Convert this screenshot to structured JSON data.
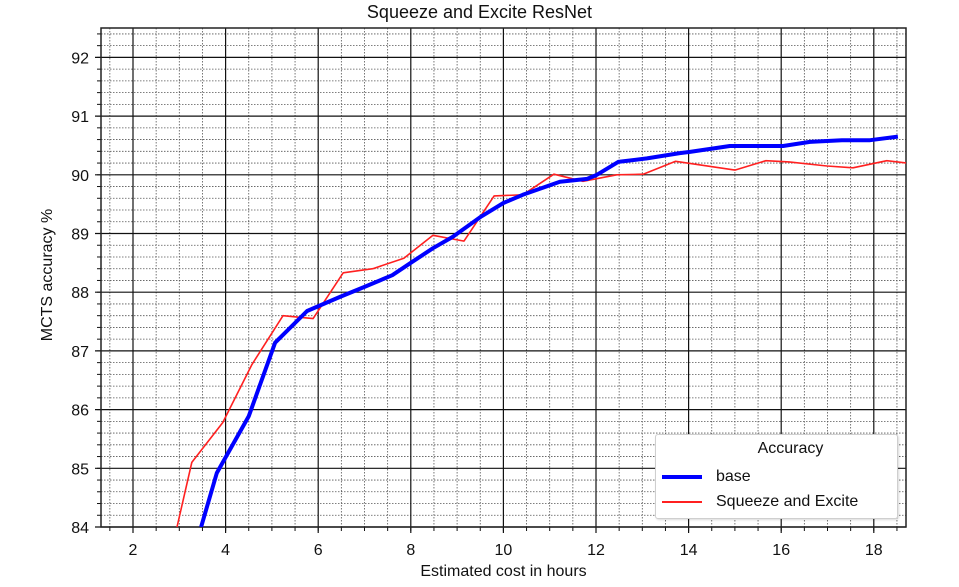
{
  "chart_data": {
    "type": "line",
    "title": "Squeeze and Excite ResNet",
    "xlabel": "Estimated cost in hours",
    "ylabel": "MCTS accuracy %",
    "xlim": [
      1.35,
      18.75
    ],
    "ylim": [
      84,
      92.5
    ],
    "xticks": [
      2,
      4,
      6,
      8,
      10,
      12,
      14,
      16,
      18
    ],
    "yticks": [
      84,
      85,
      86,
      87,
      88,
      89,
      90,
      91,
      92
    ],
    "grid": true,
    "legend": {
      "title": "Accuracy",
      "position": "lower right"
    },
    "series": [
      {
        "name": "base",
        "color": "#0000ff",
        "width": 4,
        "x": [
          3.47,
          3.81,
          4.5,
          5.07,
          5.76,
          6.47,
          7.0,
          7.6,
          8.0,
          8.48,
          8.9,
          9.5,
          10.0,
          10.42,
          11.22,
          11.81,
          12.02,
          12.48,
          13.1,
          13.81,
          14.03,
          14.89,
          16.04,
          16.62,
          17.31,
          17.92,
          18.52
        ],
        "y": [
          84.0,
          84.92,
          85.89,
          87.14,
          87.68,
          87.92,
          88.09,
          88.29,
          88.5,
          88.75,
          88.94,
          89.28,
          89.52,
          89.66,
          89.88,
          89.93,
          90.0,
          90.22,
          90.28,
          90.37,
          90.39,
          90.49,
          90.49,
          90.56,
          90.59,
          90.59,
          90.65
        ]
      },
      {
        "name": "Squeeze and Excite",
        "color": "#ff2020",
        "width": 1.6,
        "x": [
          2.95,
          3.27,
          3.94,
          4.57,
          5.24,
          5.89,
          6.54,
          7.18,
          7.85,
          8.48,
          9.15,
          9.8,
          10.42,
          11.09,
          11.72,
          12.45,
          13.02,
          13.72,
          15.0,
          15.67,
          16.17,
          16.99,
          17.55,
          18.28,
          18.72
        ],
        "y": [
          84.0,
          85.1,
          85.78,
          86.77,
          87.6,
          87.55,
          88.33,
          88.4,
          88.58,
          88.97,
          88.87,
          89.64,
          89.66,
          90.01,
          89.89,
          90.0,
          90.01,
          90.23,
          90.08,
          90.24,
          90.22,
          90.15,
          90.12,
          90.24,
          90.2
        ]
      }
    ]
  },
  "labels": {
    "title": "Squeeze and Excite ResNet",
    "xlabel": "Estimated cost in hours",
    "ylabel": "MCTS accuracy %",
    "legend_title": "Accuracy",
    "legend_base": "base",
    "legend_se": "Squeeze and Excite"
  },
  "colors": {
    "base": "#0000ff",
    "se": "#ff2020",
    "major_grid": "#000000",
    "minor_grid": "#555555"
  }
}
